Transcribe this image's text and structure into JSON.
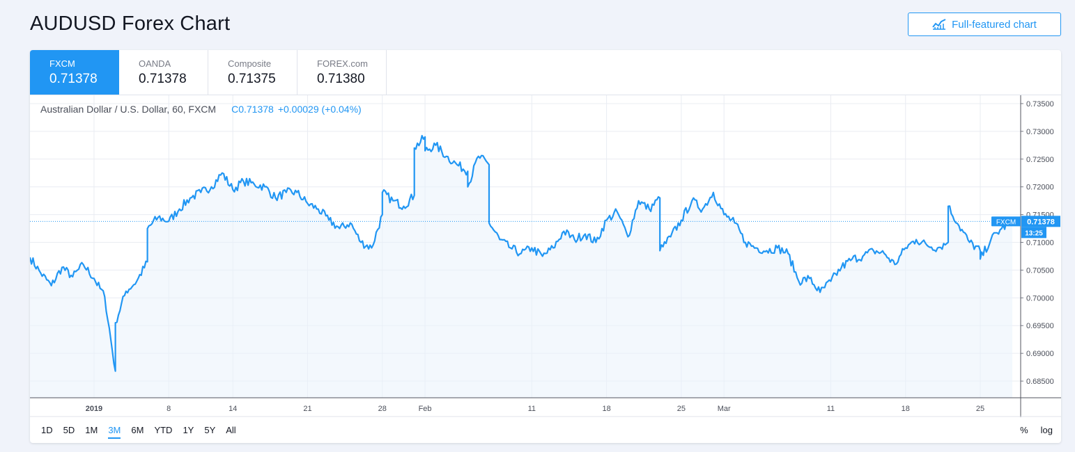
{
  "page": {
    "title": "AUDUSD Forex Chart"
  },
  "toolbar": {
    "full_chart_label": "Full-featured chart",
    "full_chart_icon": "chart-line-icon"
  },
  "tabs": [
    {
      "name": "FXCM",
      "value": "0.71378",
      "active": true
    },
    {
      "name": "OANDA",
      "value": "0.71378",
      "active": false
    },
    {
      "name": "Composite",
      "value": "0.71375",
      "active": false
    },
    {
      "name": "FOREX.com",
      "value": "0.71380",
      "active": false
    }
  ],
  "legend": {
    "symbol": "Australian Dollar / U.S. Dollar, 60, FXCM",
    "close_prefix": "C",
    "close": "0.71378",
    "change": "+0.00029 (+0.04%)"
  },
  "price_badge": {
    "label": "FXCM",
    "value": "0.71378",
    "countdown": "13:25"
  },
  "ranges": [
    {
      "label": "1D",
      "active": false
    },
    {
      "label": "5D",
      "active": false
    },
    {
      "label": "1M",
      "active": false
    },
    {
      "label": "3M",
      "active": true
    },
    {
      "label": "6M",
      "active": false
    },
    {
      "label": "YTD",
      "active": false
    },
    {
      "label": "1Y",
      "active": false
    },
    {
      "label": "5Y",
      "active": false
    },
    {
      "label": "All",
      "active": false
    }
  ],
  "scale_options": {
    "percent": "%",
    "log": "log"
  },
  "colors": {
    "accent": "#2196f3",
    "line": "#2196f3",
    "area": "#e9f2fb",
    "grid": "#e9ecf2"
  },
  "chart_data": {
    "type": "line",
    "series": [
      {
        "name": "FXCM"
      }
    ],
    "ylim": [
      0.682,
      0.7365
    ],
    "xlim": [
      "2018-12-26",
      "2019-03-28"
    ],
    "y_ticks": [
      0.735,
      0.73,
      0.725,
      0.72,
      0.715,
      0.71,
      0.705,
      0.7,
      0.695,
      0.69,
      0.685
    ],
    "y_tick_labels": [
      "0.73500",
      "0.73000",
      "0.72500",
      "0.72000",
      "0.71500",
      "0.71000",
      "0.70500",
      "0.70000",
      "0.69500",
      "0.69000",
      "0.68500"
    ],
    "x_ticks": [
      {
        "date": "2019-01-01",
        "label": "2019",
        "bold": true
      },
      {
        "date": "2019-01-08",
        "label": "8"
      },
      {
        "date": "2019-01-14",
        "label": "14"
      },
      {
        "date": "2019-01-21",
        "label": "21"
      },
      {
        "date": "2019-01-28",
        "label": "28"
      },
      {
        "date": "2019-02-01",
        "label": "Feb"
      },
      {
        "date": "2019-02-11",
        "label": "11"
      },
      {
        "date": "2019-02-18",
        "label": "18"
      },
      {
        "date": "2019-02-25",
        "label": "25"
      },
      {
        "date": "2019-03-01",
        "label": "Mar"
      },
      {
        "date": "2019-03-11",
        "label": "11"
      },
      {
        "date": "2019-03-18",
        "label": "18"
      },
      {
        "date": "2019-03-25",
        "label": "25"
      }
    ],
    "grid": true,
    "last_value": 0.71378,
    "points": [
      [
        "2018-12-26",
        0.7073
      ],
      [
        "2018-12-27",
        0.7045
      ],
      [
        "2018-12-28",
        0.7022
      ],
      [
        "2018-12-29",
        0.7055
      ],
      [
        "2018-12-30",
        0.7038
      ],
      [
        "2018-12-31",
        0.706
      ],
      [
        "2019-01-01",
        0.7035
      ],
      [
        "2019-01-02",
        0.7002
      ],
      [
        "2019-01-03",
        0.6868
      ],
      [
        "2019-01-03",
        0.6955
      ],
      [
        "2019-01-04",
        0.7012
      ],
      [
        "2019-01-05",
        0.703
      ],
      [
        "2019-01-06",
        0.7065
      ],
      [
        "2019-01-06",
        0.7125
      ],
      [
        "2019-01-07",
        0.7145
      ],
      [
        "2019-01-08",
        0.7138
      ],
      [
        "2019-01-09",
        0.716
      ],
      [
        "2019-01-10",
        0.718
      ],
      [
        "2019-01-11",
        0.719
      ],
      [
        "2019-01-12",
        0.72
      ],
      [
        "2019-01-13",
        0.7225
      ],
      [
        "2019-01-14",
        0.7195
      ],
      [
        "2019-01-15",
        0.721
      ],
      [
        "2019-01-16",
        0.7205
      ],
      [
        "2019-01-17",
        0.72
      ],
      [
        "2019-01-18",
        0.718
      ],
      [
        "2019-01-19",
        0.719
      ],
      [
        "2019-01-20",
        0.719
      ],
      [
        "2019-01-21",
        0.717
      ],
      [
        "2019-01-22",
        0.716
      ],
      [
        "2019-01-23",
        0.714
      ],
      [
        "2019-01-24",
        0.7125
      ],
      [
        "2019-01-25",
        0.7135
      ],
      [
        "2019-01-26",
        0.71
      ],
      [
        "2019-01-27",
        0.709
      ],
      [
        "2019-01-28",
        0.715
      ],
      [
        "2019-01-28",
        0.719
      ],
      [
        "2019-01-29",
        0.7175
      ],
      [
        "2019-01-30",
        0.7165
      ],
      [
        "2019-01-31",
        0.7185
      ],
      [
        "2019-01-31",
        0.727
      ],
      [
        "2019-02-01",
        0.729
      ],
      [
        "2019-02-01",
        0.7265
      ],
      [
        "2019-02-02",
        0.7275
      ],
      [
        "2019-02-03",
        0.7255
      ],
      [
        "2019-02-04",
        0.724
      ],
      [
        "2019-02-05",
        0.7228
      ],
      [
        "2019-02-05",
        0.72
      ],
      [
        "2019-02-06",
        0.7255
      ],
      [
        "2019-02-07",
        0.724
      ],
      [
        "2019-02-07",
        0.7135
      ],
      [
        "2019-02-08",
        0.7105
      ],
      [
        "2019-02-09",
        0.709
      ],
      [
        "2019-02-10",
        0.708
      ],
      [
        "2019-02-11",
        0.709
      ],
      [
        "2019-02-12",
        0.7075
      ],
      [
        "2019-02-13",
        0.709
      ],
      [
        "2019-02-14",
        0.712
      ],
      [
        "2019-02-15",
        0.7105
      ],
      [
        "2019-02-16",
        0.7115
      ],
      [
        "2019-02-17",
        0.71
      ],
      [
        "2019-02-18",
        0.714
      ],
      [
        "2019-02-19",
        0.7155
      ],
      [
        "2019-02-20",
        0.711
      ],
      [
        "2019-02-21",
        0.7175
      ],
      [
        "2019-02-22",
        0.716
      ],
      [
        "2019-02-23",
        0.718
      ],
      [
        "2019-02-23",
        0.7085
      ],
      [
        "2019-02-24",
        0.711
      ],
      [
        "2019-02-25",
        0.714
      ],
      [
        "2019-02-26",
        0.7175
      ],
      [
        "2019-02-27",
        0.716
      ],
      [
        "2019-02-28",
        0.719
      ],
      [
        "2019-03-01",
        0.715
      ],
      [
        "2019-03-02",
        0.7135
      ],
      [
        "2019-03-03",
        0.71
      ],
      [
        "2019-03-04",
        0.709
      ],
      [
        "2019-03-05",
        0.7085
      ],
      [
        "2019-03-06",
        0.709
      ],
      [
        "2019-03-07",
        0.708
      ],
      [
        "2019-03-08",
        0.703
      ],
      [
        "2019-03-09",
        0.7035
      ],
      [
        "2019-03-10",
        0.701
      ],
      [
        "2019-03-11",
        0.703
      ],
      [
        "2019-03-12",
        0.7055
      ],
      [
        "2019-03-13",
        0.707
      ],
      [
        "2019-03-14",
        0.7075
      ],
      [
        "2019-03-15",
        0.7085
      ],
      [
        "2019-03-16",
        0.708
      ],
      [
        "2019-03-17",
        0.706
      ],
      [
        "2019-03-18",
        0.709
      ],
      [
        "2019-03-19",
        0.7105
      ],
      [
        "2019-03-20",
        0.7095
      ],
      [
        "2019-03-21",
        0.709
      ],
      [
        "2019-03-22",
        0.71
      ],
      [
        "2019-03-22",
        0.7165
      ],
      [
        "2019-03-23",
        0.713
      ],
      [
        "2019-03-24",
        0.71
      ],
      [
        "2019-03-25",
        0.7085
      ],
      [
        "2019-03-25",
        0.707
      ],
      [
        "2019-03-26",
        0.7105
      ],
      [
        "2019-03-27",
        0.7125
      ],
      [
        "2019-03-28",
        0.71378
      ]
    ]
  }
}
